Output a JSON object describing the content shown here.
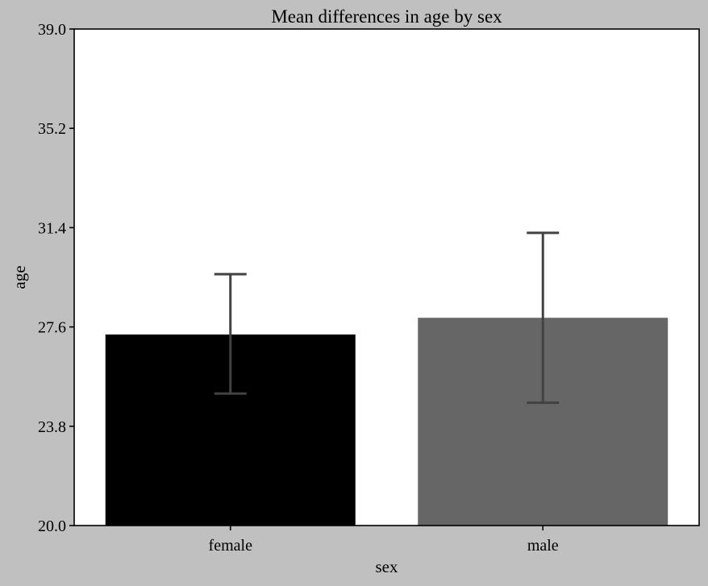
{
  "chart_data": {
    "type": "bar",
    "title": "Mean differences in age by sex",
    "xlabel": "sex",
    "ylabel": "age",
    "categories": [
      "female",
      "male"
    ],
    "values": [
      27.31,
      27.95
    ],
    "error_low": [
      25.05,
      24.7
    ],
    "error_high": [
      29.62,
      31.2
    ],
    "ylim": [
      20.0,
      39.0
    ],
    "yticks": [
      "20.0",
      "23.8",
      "27.6",
      "31.4",
      "35.2",
      "39.0"
    ],
    "grid": false,
    "legend": "none",
    "colors": {
      "figure_background": "#c0c0c0",
      "plot_background": "#ffffff",
      "bars": [
        "#000000",
        "#666666"
      ],
      "error_bars": "#424242"
    }
  }
}
